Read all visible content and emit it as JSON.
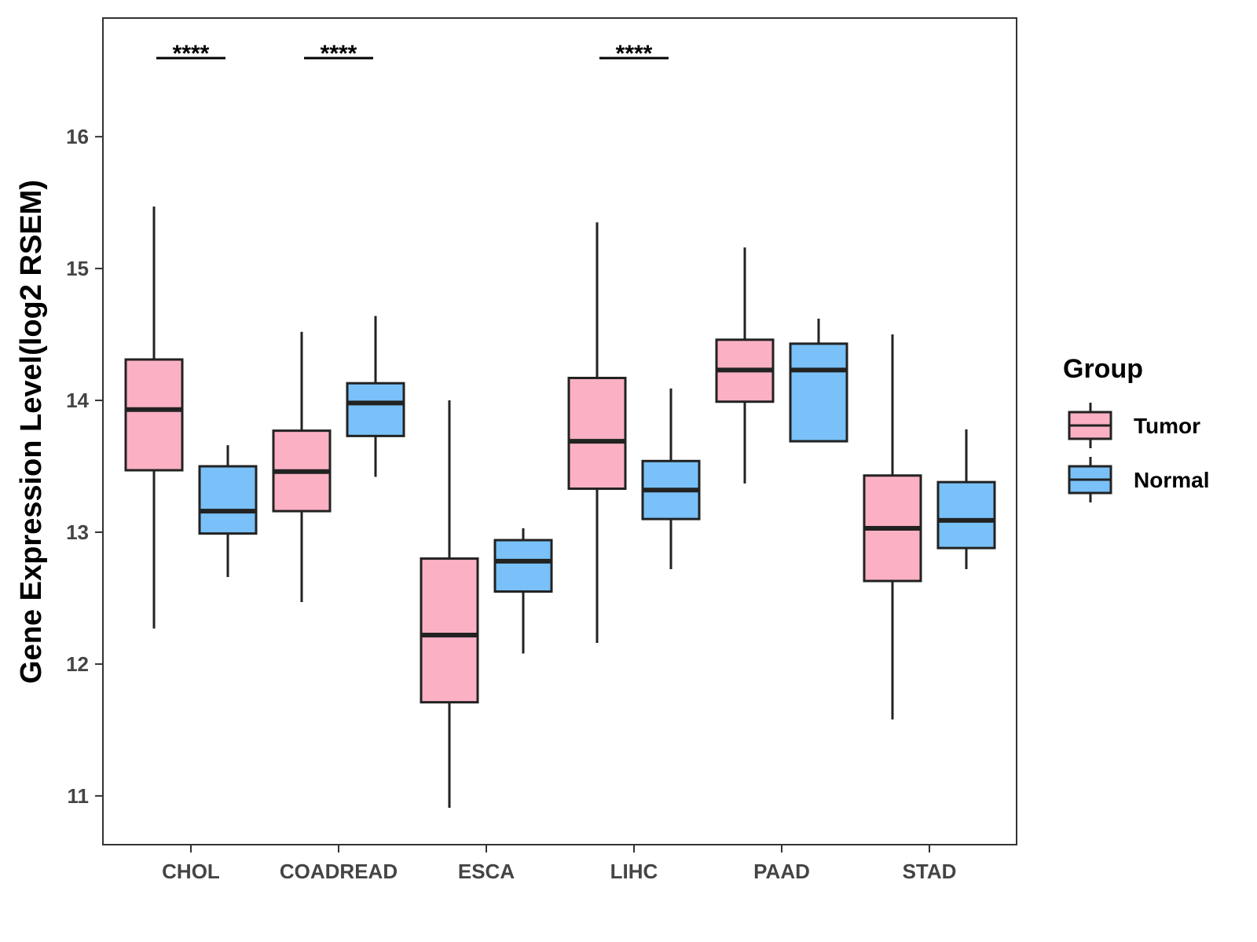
{
  "chart_data": {
    "type": "boxplot",
    "title": "",
    "xlabel": "",
    "ylabel": "Gene Expression Level(log2 RSEM)",
    "ylim": [
      10.63,
      16.9
    ],
    "yticks": [
      11,
      12,
      13,
      14,
      15,
      16
    ],
    "categories": [
      "CHOL",
      "COADREAD",
      "ESCA",
      "LIHC",
      "PAAD",
      "STAD"
    ],
    "legend": {
      "title": "Group",
      "position": "right",
      "entries": [
        {
          "name": "Tumor",
          "color": "#FBB1C3"
        },
        {
          "name": "Normal",
          "color": "#79C1F8"
        }
      ]
    },
    "series": [
      {
        "name": "Tumor",
        "color": "#FBB1C3",
        "boxes": [
          {
            "min": 12.27,
            "q1": 13.47,
            "median": 13.93,
            "q3": 14.31,
            "max": 15.47
          },
          {
            "min": 12.47,
            "q1": 13.16,
            "median": 13.46,
            "q3": 13.77,
            "max": 14.52
          },
          {
            "min": 10.91,
            "q1": 11.71,
            "median": 12.22,
            "q3": 12.8,
            "max": 14.0
          },
          {
            "min": 12.16,
            "q1": 13.33,
            "median": 13.69,
            "q3": 14.17,
            "max": 15.35
          },
          {
            "min": 13.37,
            "q1": 13.99,
            "median": 14.23,
            "q3": 14.46,
            "max": 15.16
          },
          {
            "min": 11.58,
            "q1": 12.63,
            "median": 13.03,
            "q3": 13.43,
            "max": 14.5
          }
        ]
      },
      {
        "name": "Normal",
        "color": "#79C1F8",
        "boxes": [
          {
            "min": 12.66,
            "q1": 12.99,
            "median": 13.16,
            "q3": 13.5,
            "max": 13.66
          },
          {
            "min": 13.42,
            "q1": 13.73,
            "median": 13.98,
            "q3": 14.13,
            "max": 14.64
          },
          {
            "min": 12.08,
            "q1": 12.55,
            "median": 12.78,
            "q3": 12.94,
            "max": 13.03
          },
          {
            "min": 12.72,
            "q1": 13.1,
            "median": 13.32,
            "q3": 13.54,
            "max": 14.09
          },
          {
            "min": 13.69,
            "q1": 13.69,
            "median": 14.23,
            "q3": 14.43,
            "max": 14.62
          },
          {
            "min": 12.72,
            "q1": 12.88,
            "median": 13.09,
            "q3": 13.38,
            "max": 13.78
          }
        ]
      }
    ],
    "annotations": [
      {
        "category": "CHOL",
        "text": "****"
      },
      {
        "category": "COADREAD",
        "text": "****"
      },
      {
        "category": "ESCA",
        "text": ""
      },
      {
        "category": "LIHC",
        "text": "****"
      },
      {
        "category": "PAAD",
        "text": ""
      },
      {
        "category": "STAD",
        "text": ""
      }
    ],
    "grid": false
  }
}
